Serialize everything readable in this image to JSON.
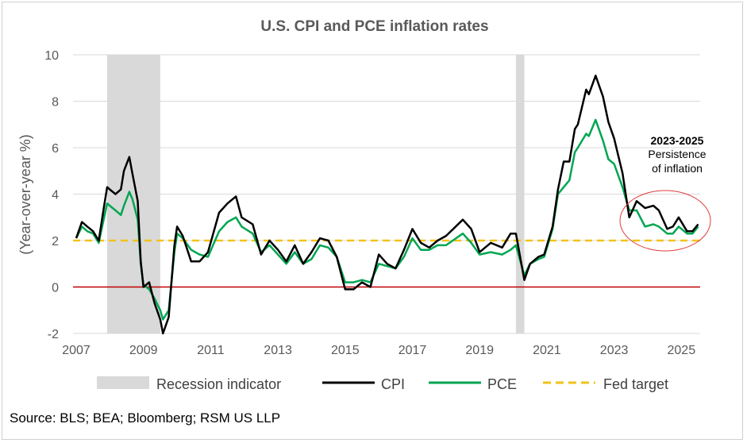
{
  "chart_data": {
    "type": "line",
    "title": "U.S. CPI and PCE inflation rates",
    "xlabel": "",
    "ylabel": "(Year-over-year %)",
    "xlim": [
      2007,
      2025.6
    ],
    "ylim": [
      -2,
      10
    ],
    "x_ticks": [
      "2007",
      "2009",
      "2011",
      "2013",
      "2015",
      "2017",
      "2019",
      "2021",
      "2023",
      "2025"
    ],
    "y_ticks": [
      "-2",
      "0",
      "2",
      "4",
      "6",
      "8",
      "10"
    ],
    "grid": "horizontal",
    "legend": "bottom",
    "recessions": [
      {
        "name": "Recession indicator",
        "start": 2007.92,
        "end": 2009.5
      },
      {
        "name": "Recession indicator",
        "start": 2020.08,
        "end": 2020.33
      }
    ],
    "series": [
      {
        "name": "CPI",
        "color": "#000000",
        "x": [
          2007.0,
          2007.17,
          2007.33,
          2007.5,
          2007.67,
          2007.83,
          2007.92,
          2008.0,
          2008.17,
          2008.33,
          2008.42,
          2008.58,
          2008.67,
          2008.83,
          2008.92,
          2009.0,
          2009.17,
          2009.33,
          2009.5,
          2009.58,
          2009.75,
          2009.92,
          2010.0,
          2010.17,
          2010.42,
          2010.67,
          2010.92,
          2011.25,
          2011.5,
          2011.75,
          2011.92,
          2012.25,
          2012.5,
          2012.75,
          2013.0,
          2013.25,
          2013.5,
          2013.75,
          2014.0,
          2014.25,
          2014.5,
          2014.75,
          2015.0,
          2015.25,
          2015.5,
          2015.75,
          2016.0,
          2016.25,
          2016.5,
          2016.75,
          2017.0,
          2017.25,
          2017.5,
          2017.75,
          2018.0,
          2018.5,
          2018.75,
          2019.0,
          2019.33,
          2019.67,
          2019.92,
          2020.08,
          2020.33,
          2020.5,
          2020.75,
          2020.92,
          2021.17,
          2021.33,
          2021.5,
          2021.67,
          2021.83,
          2021.92,
          2022.17,
          2022.25,
          2022.45,
          2022.67,
          2022.83,
          2023.0,
          2023.25,
          2023.45,
          2023.67,
          2023.92,
          2024.17,
          2024.33,
          2024.58,
          2024.75,
          2024.92,
          2025.17,
          2025.33,
          2025.5
        ],
        "values": [
          2.1,
          2.8,
          2.6,
          2.4,
          2.0,
          3.5,
          4.3,
          4.2,
          4.0,
          4.2,
          5.0,
          5.6,
          4.9,
          3.7,
          1.1,
          0.0,
          0.2,
          -0.7,
          -1.4,
          -2.0,
          -1.3,
          1.8,
          2.6,
          2.2,
          1.1,
          1.1,
          1.5,
          3.2,
          3.6,
          3.9,
          3.0,
          2.7,
          1.4,
          2.0,
          1.6,
          1.1,
          1.8,
          1.0,
          1.5,
          2.1,
          2.0,
          1.3,
          -0.1,
          -0.1,
          0.2,
          0.0,
          1.4,
          1.0,
          0.8,
          1.6,
          2.5,
          1.9,
          1.7,
          2.0,
          2.2,
          2.9,
          2.5,
          1.5,
          1.9,
          1.7,
          2.3,
          2.3,
          0.3,
          1.0,
          1.3,
          1.4,
          2.6,
          4.2,
          5.4,
          5.4,
          6.8,
          7.0,
          8.5,
          8.3,
          9.1,
          8.2,
          7.1,
          6.4,
          4.9,
          3.0,
          3.7,
          3.4,
          3.5,
          3.3,
          2.5,
          2.6,
          3.0,
          2.4,
          2.4,
          2.7
        ]
      },
      {
        "name": "PCE",
        "color": "#00a651",
        "x": [
          2007.0,
          2007.17,
          2007.33,
          2007.5,
          2007.67,
          2007.83,
          2007.92,
          2008.0,
          2008.17,
          2008.33,
          2008.42,
          2008.58,
          2008.67,
          2008.83,
          2008.92,
          2009.0,
          2009.17,
          2009.33,
          2009.5,
          2009.58,
          2009.75,
          2009.92,
          2010.0,
          2010.17,
          2010.42,
          2010.67,
          2010.92,
          2011.25,
          2011.5,
          2011.75,
          2011.92,
          2012.25,
          2012.5,
          2012.75,
          2013.0,
          2013.25,
          2013.5,
          2013.75,
          2014.0,
          2014.25,
          2014.5,
          2014.75,
          2015.0,
          2015.25,
          2015.5,
          2015.75,
          2016.0,
          2016.25,
          2016.5,
          2016.75,
          2017.0,
          2017.25,
          2017.5,
          2017.75,
          2018.0,
          2018.5,
          2018.75,
          2019.0,
          2019.33,
          2019.67,
          2019.92,
          2020.08,
          2020.33,
          2020.5,
          2020.75,
          2020.92,
          2021.17,
          2021.33,
          2021.5,
          2021.67,
          2021.83,
          2021.92,
          2022.17,
          2022.25,
          2022.45,
          2022.67,
          2022.83,
          2023.0,
          2023.25,
          2023.45,
          2023.67,
          2023.92,
          2024.17,
          2024.33,
          2024.58,
          2024.75,
          2024.92,
          2025.17,
          2025.33,
          2025.5
        ],
        "values": [
          2.1,
          2.6,
          2.4,
          2.3,
          1.9,
          3.0,
          3.6,
          3.5,
          3.3,
          3.1,
          3.5,
          4.1,
          3.8,
          2.9,
          1.0,
          0.1,
          -0.1,
          -0.5,
          -1.0,
          -1.4,
          -1.0,
          1.5,
          2.3,
          2.1,
          1.6,
          1.4,
          1.3,
          2.4,
          2.8,
          3.0,
          2.6,
          2.3,
          1.5,
          1.8,
          1.4,
          1.0,
          1.5,
          1.0,
          1.2,
          1.8,
          1.7,
          1.3,
          0.2,
          0.2,
          0.3,
          0.2,
          1.0,
          0.9,
          0.8,
          1.3,
          2.1,
          1.6,
          1.6,
          1.8,
          1.8,
          2.3,
          1.9,
          1.4,
          1.5,
          1.4,
          1.6,
          1.8,
          0.5,
          1.0,
          1.2,
          1.3,
          2.5,
          4.0,
          4.3,
          4.6,
          5.8,
          6.0,
          6.6,
          6.5,
          7.2,
          6.3,
          5.5,
          5.3,
          4.3,
          3.3,
          3.3,
          2.6,
          2.7,
          2.6,
          2.3,
          2.3,
          2.6,
          2.3,
          2.3,
          2.6
        ]
      },
      {
        "name": "Fed target",
        "color": "#f2c318",
        "value": 2
      }
    ],
    "zero_line_color": "#c00000",
    "recession_color": "#d9d9d9",
    "legend_entries": [
      "Recession indicator",
      "CPI",
      "PCE",
      "Fed target"
    ],
    "annotation": {
      "heading": "2023-2025",
      "line1": "Persistence",
      "line2": "of inflation",
      "ellipse_color": "#e03c3c"
    }
  },
  "source": "Source: BLS; BEA; Bloomberg; RSM US LLP"
}
